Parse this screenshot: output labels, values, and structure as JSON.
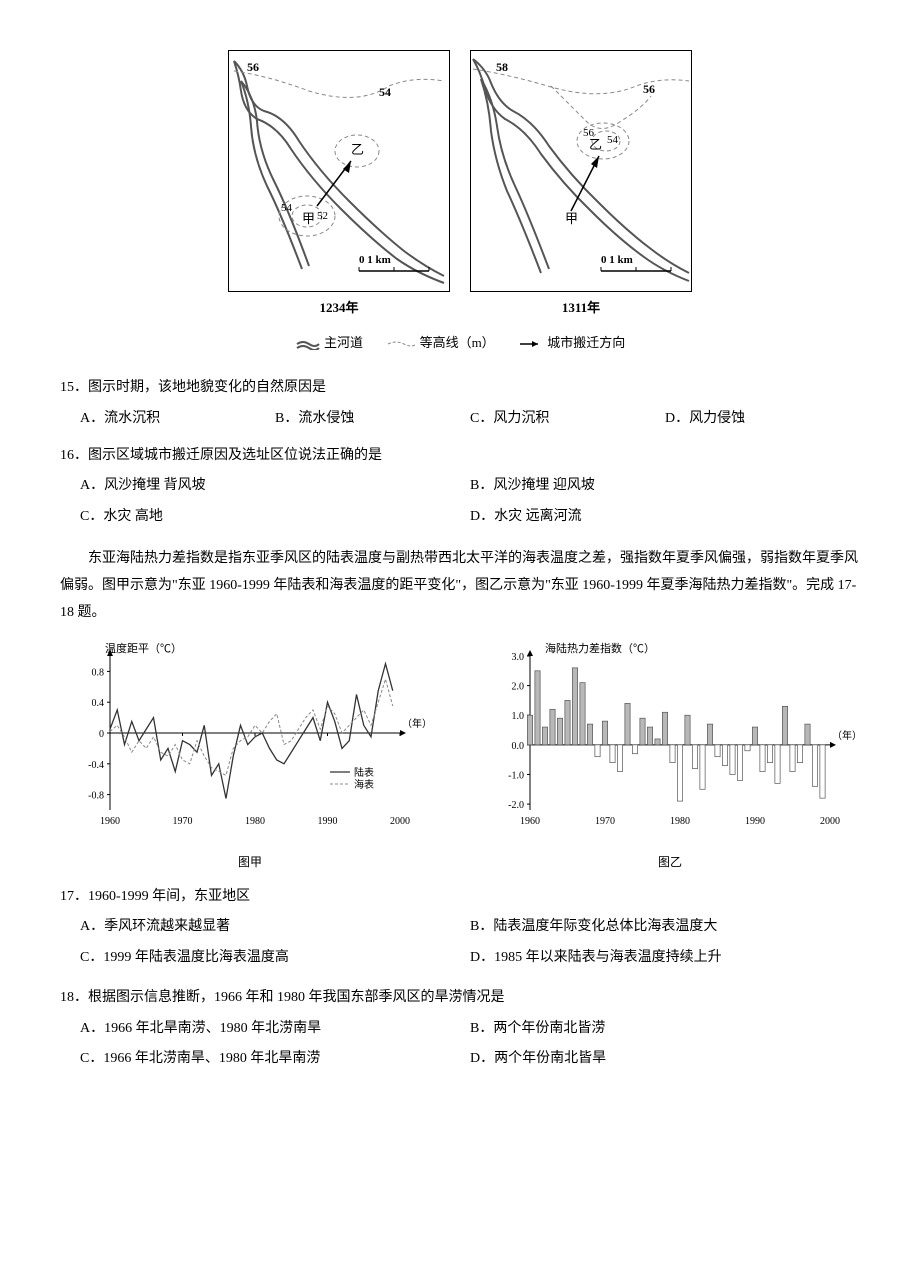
{
  "maps": {
    "left": {
      "year": "1234年",
      "labels": {
        "tl": "56",
        "tr": "54",
        "cA": "甲",
        "cA1": "54",
        "cA2": "52",
        "cB": "乙"
      },
      "scale": "0    1 km"
    },
    "right": {
      "year": "1311年",
      "labels": {
        "tl": "58",
        "tr": "56",
        "cA": "甲",
        "cB": "乙",
        "cB1": "56",
        "cB2": "54"
      },
      "scale": "0    1 km"
    },
    "legend": {
      "river": "主河道",
      "contour": "等高线（m）",
      "arrow": "城市搬迁方向"
    }
  },
  "q15": {
    "stem": "15．图示时期，该地地貌变化的自然原因是",
    "A": "A．流水沉积",
    "B": "B．流水侵蚀",
    "C": "C．风力沉积",
    "D": "D．风力侵蚀"
  },
  "q16": {
    "stem": "16．图示区域城市搬迁原因及选址区位说法正确的是",
    "A": "A．风沙掩埋  背风坡",
    "B": "B．风沙掩埋  迎风坡",
    "C": "C．水灾  高地",
    "D": "D．水灾  远离河流"
  },
  "passage2": "东亚海陆热力差指数是指东亚季风区的陆表温度与副热带西北太平洋的海表温度之差，强指数年夏季风偏强，弱指数年夏季风偏弱。图甲示意为\"东亚 1960-1999 年陆表和海表温度的距平变化\"，图乙示意为\"东亚 1960-1999 年夏季海陆热力差指数\"。完成 17-18 题。",
  "chartA": {
    "ylabel": "温度距平（℃）",
    "xlabel": "（年）",
    "caption": "图甲",
    "yticks": [
      "0.8",
      "0.4",
      "0",
      "-0.4",
      "-0.8"
    ],
    "xticks": [
      "1960",
      "1970",
      "1980",
      "1990",
      "2000"
    ],
    "legend_land": "陆表",
    "legend_sea": "海表",
    "ylim": [
      -1.0,
      1.0
    ],
    "xlim": [
      1960,
      2000
    ],
    "land_color": "#333333",
    "sea_color": "#888888",
    "land": [
      [
        1960,
        0.05
      ],
      [
        1961,
        0.3
      ],
      [
        1962,
        -0.15
      ],
      [
        1963,
        0.15
      ],
      [
        1964,
        -0.1
      ],
      [
        1965,
        0.05
      ],
      [
        1966,
        0.2
      ],
      [
        1967,
        -0.35
      ],
      [
        1968,
        -0.2
      ],
      [
        1969,
        -0.5
      ],
      [
        1970,
        -0.1
      ],
      [
        1971,
        -0.15
      ],
      [
        1972,
        -0.25
      ],
      [
        1973,
        0.1
      ],
      [
        1974,
        -0.55
      ],
      [
        1975,
        -0.4
      ],
      [
        1976,
        -0.85
      ],
      [
        1977,
        -0.3
      ],
      [
        1978,
        0.1
      ],
      [
        1979,
        -0.15
      ],
      [
        1980,
        -0.05
      ],
      [
        1981,
        0.0
      ],
      [
        1982,
        -0.2
      ],
      [
        1983,
        -0.35
      ],
      [
        1984,
        -0.4
      ],
      [
        1985,
        -0.25
      ],
      [
        1986,
        -0.1
      ],
      [
        1987,
        0.05
      ],
      [
        1988,
        0.2
      ],
      [
        1989,
        -0.1
      ],
      [
        1990,
        0.4
      ],
      [
        1991,
        0.15
      ],
      [
        1992,
        -0.2
      ],
      [
        1993,
        -0.1
      ],
      [
        1994,
        0.5
      ],
      [
        1995,
        0.1
      ],
      [
        1996,
        -0.05
      ],
      [
        1997,
        0.55
      ],
      [
        1998,
        0.9
      ],
      [
        1999,
        0.55
      ]
    ],
    "sea": [
      [
        1960,
        0.02
      ],
      [
        1961,
        0.1
      ],
      [
        1962,
        -0.05
      ],
      [
        1963,
        -0.25
      ],
      [
        1964,
        -0.1
      ],
      [
        1965,
        -0.2
      ],
      [
        1966,
        -0.05
      ],
      [
        1967,
        -0.25
      ],
      [
        1968,
        -0.3
      ],
      [
        1969,
        -0.15
      ],
      [
        1970,
        -0.35
      ],
      [
        1971,
        -0.4
      ],
      [
        1972,
        -0.1
      ],
      [
        1973,
        -0.3
      ],
      [
        1974,
        -0.45
      ],
      [
        1975,
        -0.5
      ],
      [
        1976,
        -0.55
      ],
      [
        1977,
        -0.2
      ],
      [
        1978,
        -0.1
      ],
      [
        1979,
        -0.05
      ],
      [
        1980,
        0.1
      ],
      [
        1981,
        0.0
      ],
      [
        1982,
        0.15
      ],
      [
        1983,
        0.25
      ],
      [
        1984,
        -0.15
      ],
      [
        1985,
        -0.1
      ],
      [
        1986,
        0.05
      ],
      [
        1987,
        0.2
      ],
      [
        1988,
        0.3
      ],
      [
        1989,
        0.05
      ],
      [
        1990,
        0.35
      ],
      [
        1991,
        0.25
      ],
      [
        1992,
        0.0
      ],
      [
        1993,
        0.1
      ],
      [
        1994,
        0.2
      ],
      [
        1995,
        0.3
      ],
      [
        1996,
        0.1
      ],
      [
        1997,
        0.4
      ],
      [
        1998,
        0.7
      ],
      [
        1999,
        0.35
      ]
    ]
  },
  "chartB": {
    "ylabel": "海陆热力差指数（℃）",
    "xlabel": "（年）",
    "caption": "图乙",
    "yticks": [
      "3.0",
      "2.0",
      "1.0",
      "0",
      "-1.0",
      "-2.0"
    ],
    "xticks": [
      "1960",
      "1970",
      "1980",
      "1990",
      "2000"
    ],
    "ylim": [
      -2.2,
      3.0
    ],
    "xlim": [
      1960,
      2000
    ],
    "pos_fill": "#b8b8b8",
    "neg_fill": "#ffffff",
    "stroke": "#555555",
    "bar_width": 0.7,
    "values": [
      [
        1960,
        1.0
      ],
      [
        1961,
        2.5
      ],
      [
        1962,
        0.6
      ],
      [
        1963,
        1.2
      ],
      [
        1964,
        0.9
      ],
      [
        1965,
        1.5
      ],
      [
        1966,
        2.6
      ],
      [
        1967,
        2.1
      ],
      [
        1968,
        0.7
      ],
      [
        1969,
        -0.4
      ],
      [
        1970,
        0.8
      ],
      [
        1971,
        -0.6
      ],
      [
        1972,
        -0.9
      ],
      [
        1973,
        1.4
      ],
      [
        1974,
        -0.3
      ],
      [
        1975,
        0.9
      ],
      [
        1976,
        0.6
      ],
      [
        1977,
        0.2
      ],
      [
        1978,
        1.1
      ],
      [
        1979,
        -0.6
      ],
      [
        1980,
        -1.9
      ],
      [
        1981,
        1.0
      ],
      [
        1982,
        -0.8
      ],
      [
        1983,
        -1.5
      ],
      [
        1984,
        0.7
      ],
      [
        1985,
        -0.4
      ],
      [
        1986,
        -0.7
      ],
      [
        1987,
        -1.0
      ],
      [
        1988,
        -1.2
      ],
      [
        1989,
        -0.2
      ],
      [
        1990,
        0.6
      ],
      [
        1991,
        -0.9
      ],
      [
        1992,
        -0.6
      ],
      [
        1993,
        -1.3
      ],
      [
        1994,
        1.3
      ],
      [
        1995,
        -0.9
      ],
      [
        1996,
        -0.6
      ],
      [
        1997,
        0.7
      ],
      [
        1998,
        -1.4
      ],
      [
        1999,
        -1.8
      ]
    ]
  },
  "q17": {
    "stem": "17．1960-1999 年间，东亚地区",
    "A": "A．季风环流越来越显著",
    "B": "B．陆表温度年际变化总体比海表温度大",
    "C": "C．1999 年陆表温度比海表温度高",
    "D": "D．1985 年以来陆表与海表温度持续上升"
  },
  "q18": {
    "stem": "18．根据图示信息推断，1966 年和 1980 年我国东部季风区的旱涝情况是",
    "A": "A．1966 年北旱南涝、1980 年北涝南旱",
    "B": "B．两个年份南北皆涝",
    "C": "C．1966 年北涝南旱、1980 年北旱南涝",
    "D": "D．两个年份南北皆旱"
  }
}
